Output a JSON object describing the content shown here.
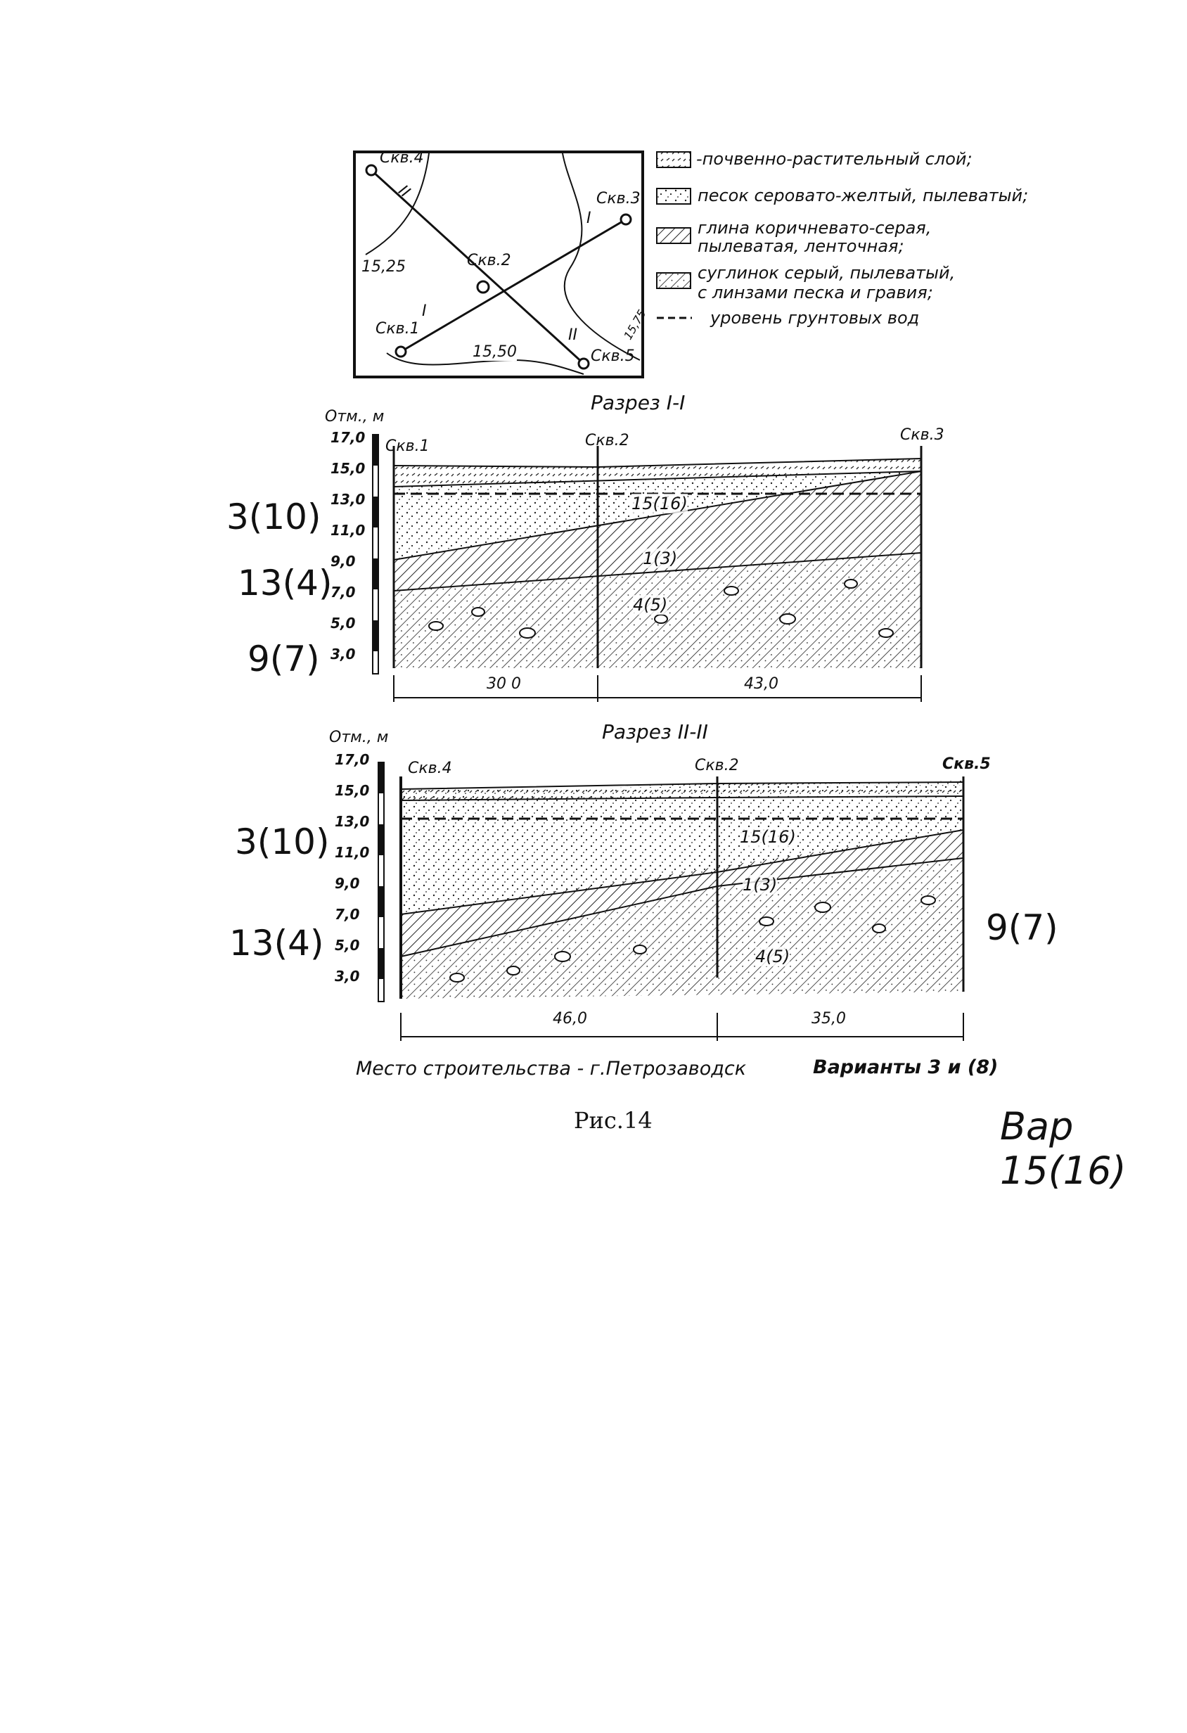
{
  "plan": {
    "wells": [
      "Скв.4",
      "Скв.3",
      "Скв.2",
      "Скв.1",
      "Скв.5"
    ],
    "contours": [
      "15,25",
      "15,50",
      "15,75"
    ],
    "line_marks": [
      "I",
      "I",
      "II",
      "II"
    ]
  },
  "legend": [
    {
      "text": "-почвенно-растительный слой;",
      "pattern": "soil"
    },
    {
      "text": "песок серовато-желтый, пылеватый;",
      "pattern": "sand"
    },
    {
      "text": "глина коричневато-серая,",
      "text2": "пылеватая, ленточная;",
      "pattern": "clay"
    },
    {
      "text": "суглинок серый, пылеватый,",
      "text2": "с линзами песка и гравия;",
      "pattern": "loam"
    },
    {
      "text": "уровень грунтовых вод",
      "pattern": "water"
    }
  ],
  "section1": {
    "title": "Разрез I-I",
    "axis_label": "Отм., м",
    "ticks": [
      "17,0",
      "15,0",
      "13,0",
      "11,0",
      "9,0",
      "7,0",
      "5,0",
      "3,0"
    ],
    "wells": [
      "Скв.1",
      "Скв.2",
      "Скв.3"
    ],
    "layer_labels": [
      "15(16)",
      "1(3)",
      "4(5)"
    ],
    "distances": [
      "30 0",
      "43,0"
    ],
    "notes": [
      "3(10)",
      "13(4)",
      "9(7)"
    ]
  },
  "section2": {
    "title": "Разрез II-II",
    "axis_label": "Отм., м",
    "ticks": [
      "17,0",
      "15,0",
      "13,0",
      "11,0",
      "9,0",
      "7,0",
      "5,0",
      "3,0"
    ],
    "wells": [
      "Скв.4",
      "Скв.2",
      "Скв.5"
    ],
    "layer_labels": [
      "15(16)",
      "1(3)",
      "4(5)"
    ],
    "distances": [
      "46,0",
      "35,0"
    ],
    "notes": [
      "3(10)",
      "13(4)",
      "9(7)"
    ]
  },
  "footer": {
    "place": "Место строительства - г.Петрозаводск",
    "variants": "Варианты 3 и (8)",
    "figure": "Рис.14",
    "variant_note": "Вар 15(16)"
  }
}
